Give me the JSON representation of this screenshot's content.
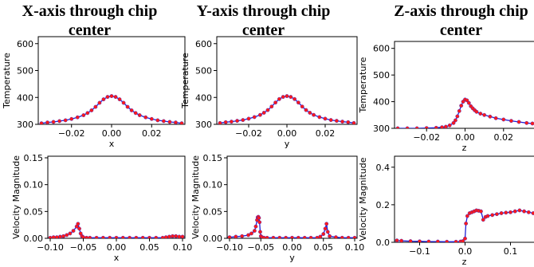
{
  "titles": [
    {
      "line1": "X-axis through chip",
      "line2": "center"
    },
    {
      "line1": "Y-axis through chip",
      "line2": "center"
    },
    {
      "line1": "Z-axis through chip",
      "line2": "center"
    }
  ],
  "colors": {
    "line": "#1f1fd6",
    "marker": "#ff1a1a"
  },
  "chart_data": [
    {
      "id": "temp-x",
      "type": "line",
      "xlabel": "x",
      "ylabel": "Temperature",
      "xlim": [
        -0.035,
        0.035
      ],
      "ylim": [
        300,
        620
      ],
      "xticks": [
        -0.02,
        0.0,
        0.02
      ],
      "xtick_labels": [
        "−0.02",
        "0.00",
        "0.02"
      ],
      "yticks": [
        300,
        400,
        500,
        600
      ],
      "ytick_labels": [
        "300",
        "400",
        "500",
        "600"
      ],
      "series": [
        {
          "x": [
            -0.035,
            -0.032,
            -0.029,
            -0.026,
            -0.023,
            -0.02,
            -0.017,
            -0.014,
            -0.012,
            -0.01,
            -0.008,
            -0.006,
            -0.004,
            -0.002,
            0,
            0.002,
            0.004,
            0.006,
            0.008,
            0.01,
            0.012,
            0.014,
            0.017,
            0.02,
            0.023,
            0.026,
            0.029,
            0.032,
            0.035
          ],
          "y": [
            304,
            307,
            309,
            312,
            315,
            320,
            326,
            334,
            342,
            352,
            365,
            380,
            393,
            402,
            405,
            402,
            393,
            380,
            365,
            352,
            342,
            334,
            326,
            320,
            315,
            312,
            309,
            307,
            304
          ]
        }
      ]
    },
    {
      "id": "temp-y",
      "type": "line",
      "xlabel": "y",
      "ylabel": "Temperature",
      "xlim": [
        -0.035,
        0.035
      ],
      "ylim": [
        300,
        620
      ],
      "xticks": [
        -0.02,
        0.0,
        0.02
      ],
      "xtick_labels": [
        "−0.02",
        "0.00",
        "0.02"
      ],
      "yticks": [
        300,
        400,
        500,
        600
      ],
      "ytick_labels": [
        "300",
        "400",
        "500",
        "600"
      ],
      "series": [
        {
          "x": [
            -0.035,
            -0.032,
            -0.029,
            -0.026,
            -0.023,
            -0.02,
            -0.017,
            -0.014,
            -0.012,
            -0.01,
            -0.008,
            -0.006,
            -0.004,
            -0.002,
            0,
            0.002,
            0.004,
            0.006,
            0.008,
            0.01,
            0.012,
            0.014,
            0.017,
            0.02,
            0.023,
            0.026,
            0.029,
            0.032,
            0.035
          ],
          "y": [
            305,
            308,
            310,
            313,
            316,
            321,
            327,
            335,
            343,
            353,
            366,
            381,
            394,
            402,
            405,
            402,
            394,
            381,
            366,
            353,
            343,
            335,
            327,
            321,
            316,
            313,
            310,
            308,
            305
          ]
        }
      ]
    },
    {
      "id": "temp-z",
      "type": "line",
      "xlabel": "z",
      "ylabel": "Temperature",
      "xlim": [
        -0.035,
        0.035
      ],
      "ylim": [
        300,
        620
      ],
      "xticks": [
        -0.02,
        0.0,
        0.02
      ],
      "xtick_labels": [
        "−0.02",
        "0.00",
        "0.02"
      ],
      "yticks": [
        300,
        400,
        500,
        600
      ],
      "ytick_labels": [
        "300",
        "400",
        "500",
        "600"
      ],
      "series": [
        {
          "x": [
            -0.035,
            -0.03,
            -0.025,
            -0.02,
            -0.015,
            -0.012,
            -0.01,
            -0.008,
            -0.006,
            -0.005,
            -0.004,
            -0.003,
            -0.002,
            -0.001,
            0,
            0.001,
            0.002,
            0.003,
            0.004,
            0.005,
            0.006,
            0.008,
            0.01,
            0.013,
            0.016,
            0.02,
            0.024,
            0.028,
            0.032,
            0.035
          ],
          "y": [
            300,
            300,
            300,
            301,
            302,
            304,
            306,
            311,
            320,
            330,
            345,
            365,
            385,
            400,
            408,
            405,
            395,
            383,
            375,
            368,
            362,
            355,
            350,
            344,
            338,
            333,
            328,
            324,
            320,
            318
          ]
        }
      ]
    },
    {
      "id": "vel-x",
      "type": "line",
      "xlabel": "x",
      "ylabel": "Velocity Magnitude",
      "xlim": [
        -0.1,
        0.1
      ],
      "ylim": [
        0,
        0.15
      ],
      "xticks": [
        -0.1,
        -0.05,
        0.0,
        0.05,
        0.1
      ],
      "xtick_labels": [
        "−0.10",
        "−0.05",
        "0.00",
        "0.05",
        "0.10"
      ],
      "yticks": [
        0,
        0.05,
        0.1,
        0.15
      ],
      "ytick_labels": [
        "0.00",
        "0.05",
        "0.10",
        "0.15"
      ],
      "series": [
        {
          "x": [
            -0.1,
            -0.095,
            -0.09,
            -0.085,
            -0.08,
            -0.075,
            -0.07,
            -0.065,
            -0.06,
            -0.058,
            -0.056,
            -0.054,
            -0.052,
            -0.05,
            -0.045,
            -0.04,
            -0.03,
            -0.02,
            -0.01,
            0,
            0.01,
            0.02,
            0.03,
            0.04,
            0.05,
            0.06,
            0.07,
            0.075,
            0.08,
            0.085,
            0.09,
            0.095,
            0.1
          ],
          "y": [
            0.001,
            0.002,
            0.002,
            0.003,
            0.004,
            0.006,
            0.009,
            0.014,
            0.022,
            0.027,
            0.018,
            0.009,
            0.004,
            0.002,
            0.001,
            0.001,
            0.001,
            0.001,
            0.001,
            0.001,
            0.001,
            0.001,
            0.001,
            0.001,
            0.001,
            0.001,
            0.001,
            0.002,
            0.003,
            0.004,
            0.004,
            0.003,
            0.003
          ]
        }
      ]
    },
    {
      "id": "vel-y",
      "type": "line",
      "xlabel": "y",
      "ylabel": "Velocity Magnitude",
      "xlim": [
        -0.1,
        0.1
      ],
      "ylim": [
        0,
        0.15
      ],
      "xticks": [
        -0.1,
        -0.05,
        0.0,
        0.05,
        0.1
      ],
      "xtick_labels": [
        "−0.10",
        "−0.05",
        "0.00",
        "0.05",
        "0.10"
      ],
      "yticks": [
        0,
        0.05,
        0.1,
        0.15
      ],
      "ytick_labels": [
        "0.00",
        "0.05",
        "0.10",
        "0.15"
      ],
      "series": [
        {
          "x": [
            -0.1,
            -0.09,
            -0.08,
            -0.07,
            -0.065,
            -0.06,
            -0.058,
            -0.056,
            -0.055,
            -0.054,
            -0.053,
            -0.052,
            -0.051,
            -0.05,
            -0.048,
            -0.045,
            -0.04,
            -0.03,
            -0.02,
            -0.01,
            0,
            0.01,
            0.02,
            0.03,
            0.04,
            0.045,
            0.05,
            0.053,
            0.055,
            0.057,
            0.06,
            0.07,
            0.08,
            0.09,
            0.1
          ],
          "y": [
            0.002,
            0.003,
            0.004,
            0.006,
            0.009,
            0.014,
            0.022,
            0.034,
            0.039,
            0.04,
            0.038,
            0.03,
            0.012,
            0.004,
            0.002,
            0.001,
            0.001,
            0.001,
            0.001,
            0.001,
            0.001,
            0.001,
            0.001,
            0.001,
            0.001,
            0.003,
            0.008,
            0.018,
            0.027,
            0.012,
            0.004,
            0.002,
            0.001,
            0.001,
            0.001
          ]
        }
      ]
    },
    {
      "id": "vel-z",
      "type": "line",
      "xlabel": "z",
      "ylabel": "Velocity Magnitude",
      "xlim": [
        -0.15,
        0.15
      ],
      "ylim": [
        0,
        0.45
      ],
      "xticks": [
        -0.1,
        0.0,
        0.1
      ],
      "xtick_labels": [
        "−0.1",
        "0.0",
        "0.1"
      ],
      "yticks": [
        0,
        0.2,
        0.4
      ],
      "ytick_labels": [
        "0.0",
        "0.2",
        "0.4"
      ],
      "series": [
        {
          "x": [
            -0.15,
            -0.14,
            -0.12,
            -0.1,
            -0.08,
            -0.06,
            -0.04,
            -0.02,
            -0.01,
            -0.005,
            0,
            0.002,
            0.005,
            0.01,
            0.015,
            0.02,
            0.025,
            0.03,
            0.035,
            0.04,
            0.045,
            0.05,
            0.06,
            0.07,
            0.08,
            0.09,
            0.1,
            0.11,
            0.12,
            0.13,
            0.14,
            0.15
          ],
          "y": [
            0.01,
            0.008,
            0.006,
            0.005,
            0.004,
            0.004,
            0.003,
            0.003,
            0.004,
            0.006,
            0.02,
            0.1,
            0.14,
            0.155,
            0.16,
            0.165,
            0.17,
            0.168,
            0.165,
            0.12,
            0.135,
            0.14,
            0.145,
            0.15,
            0.155,
            0.158,
            0.16,
            0.165,
            0.17,
            0.165,
            0.16,
            0.155
          ]
        }
      ]
    }
  ]
}
